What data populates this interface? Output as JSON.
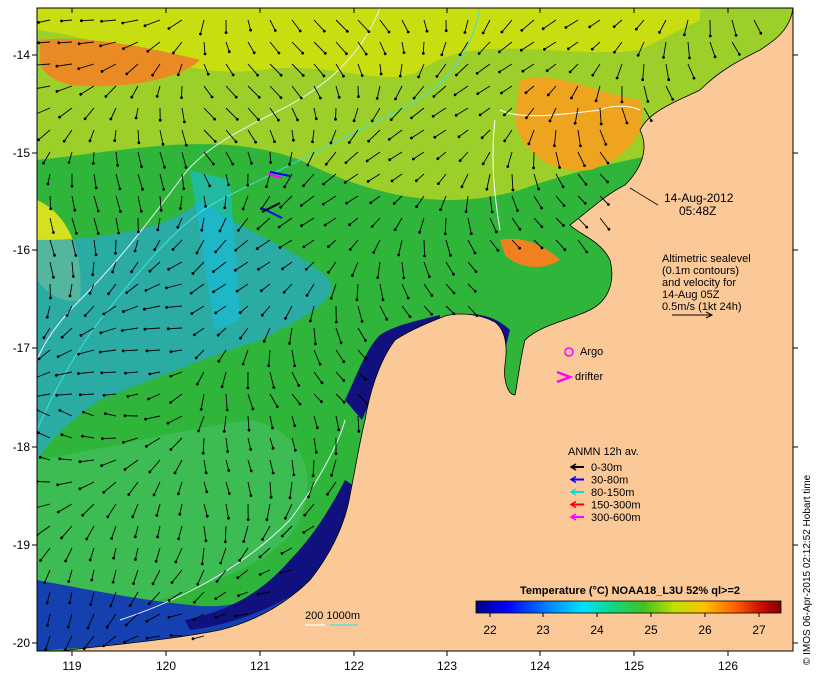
{
  "map": {
    "date_line1": "14-Aug-2012",
    "date_line2": "05:48Z",
    "altimetry_lines": [
      "Altimetric sealevel",
      "(0.1m contours)",
      "and velocity for",
      "14-Aug 05Z",
      "0.5m/s (1kt 24h)"
    ],
    "argo_label": "Argo",
    "drifter_label": "drifter",
    "anmn_title": "ANMN 12h av.",
    "anmn_legend": [
      {
        "label": "0-30m",
        "color": "#000000"
      },
      {
        "label": "30-80m",
        "color": "#0000ff"
      },
      {
        "label": "80-150m",
        "color": "#00e0e0"
      },
      {
        "label": "150-300m",
        "color": "#ff0000"
      },
      {
        "label": "300-600m",
        "color": "#ff00ff"
      }
    ],
    "bathymetry_label": "200  1000m",
    "credit": "© IMOS 06-Apr-2015 02:12:52 Hobart time",
    "lon_ticks": [
      "119",
      "120",
      "121",
      "122",
      "123",
      "124",
      "125",
      "126"
    ],
    "lat_ticks": [
      "-14",
      "-15",
      "-16",
      "-17",
      "-18",
      "-19",
      "-20"
    ],
    "colorbar": {
      "title": "Temperature (°C) NOAA18_L3U 52% ql>=2",
      "ticks": [
        "22",
        "23",
        "24",
        "25",
        "26",
        "27"
      ],
      "colors": [
        "#00007f",
        "#0000ff",
        "#0080ff",
        "#00d8ff",
        "#10e8a0",
        "#20c040",
        "#80d020",
        "#e0e000",
        "#ffb000",
        "#ff7000",
        "#e02000",
        "#800000"
      ]
    },
    "colors": {
      "land": "#fbc898",
      "sea_green": "#2fb53a",
      "sea_yellow": "#b8dc10",
      "sea_orange": "#f0a020",
      "sea_blue": "#1080f0",
      "sea_cyan": "#18c0e0",
      "sea_navy": "#10107f"
    }
  }
}
